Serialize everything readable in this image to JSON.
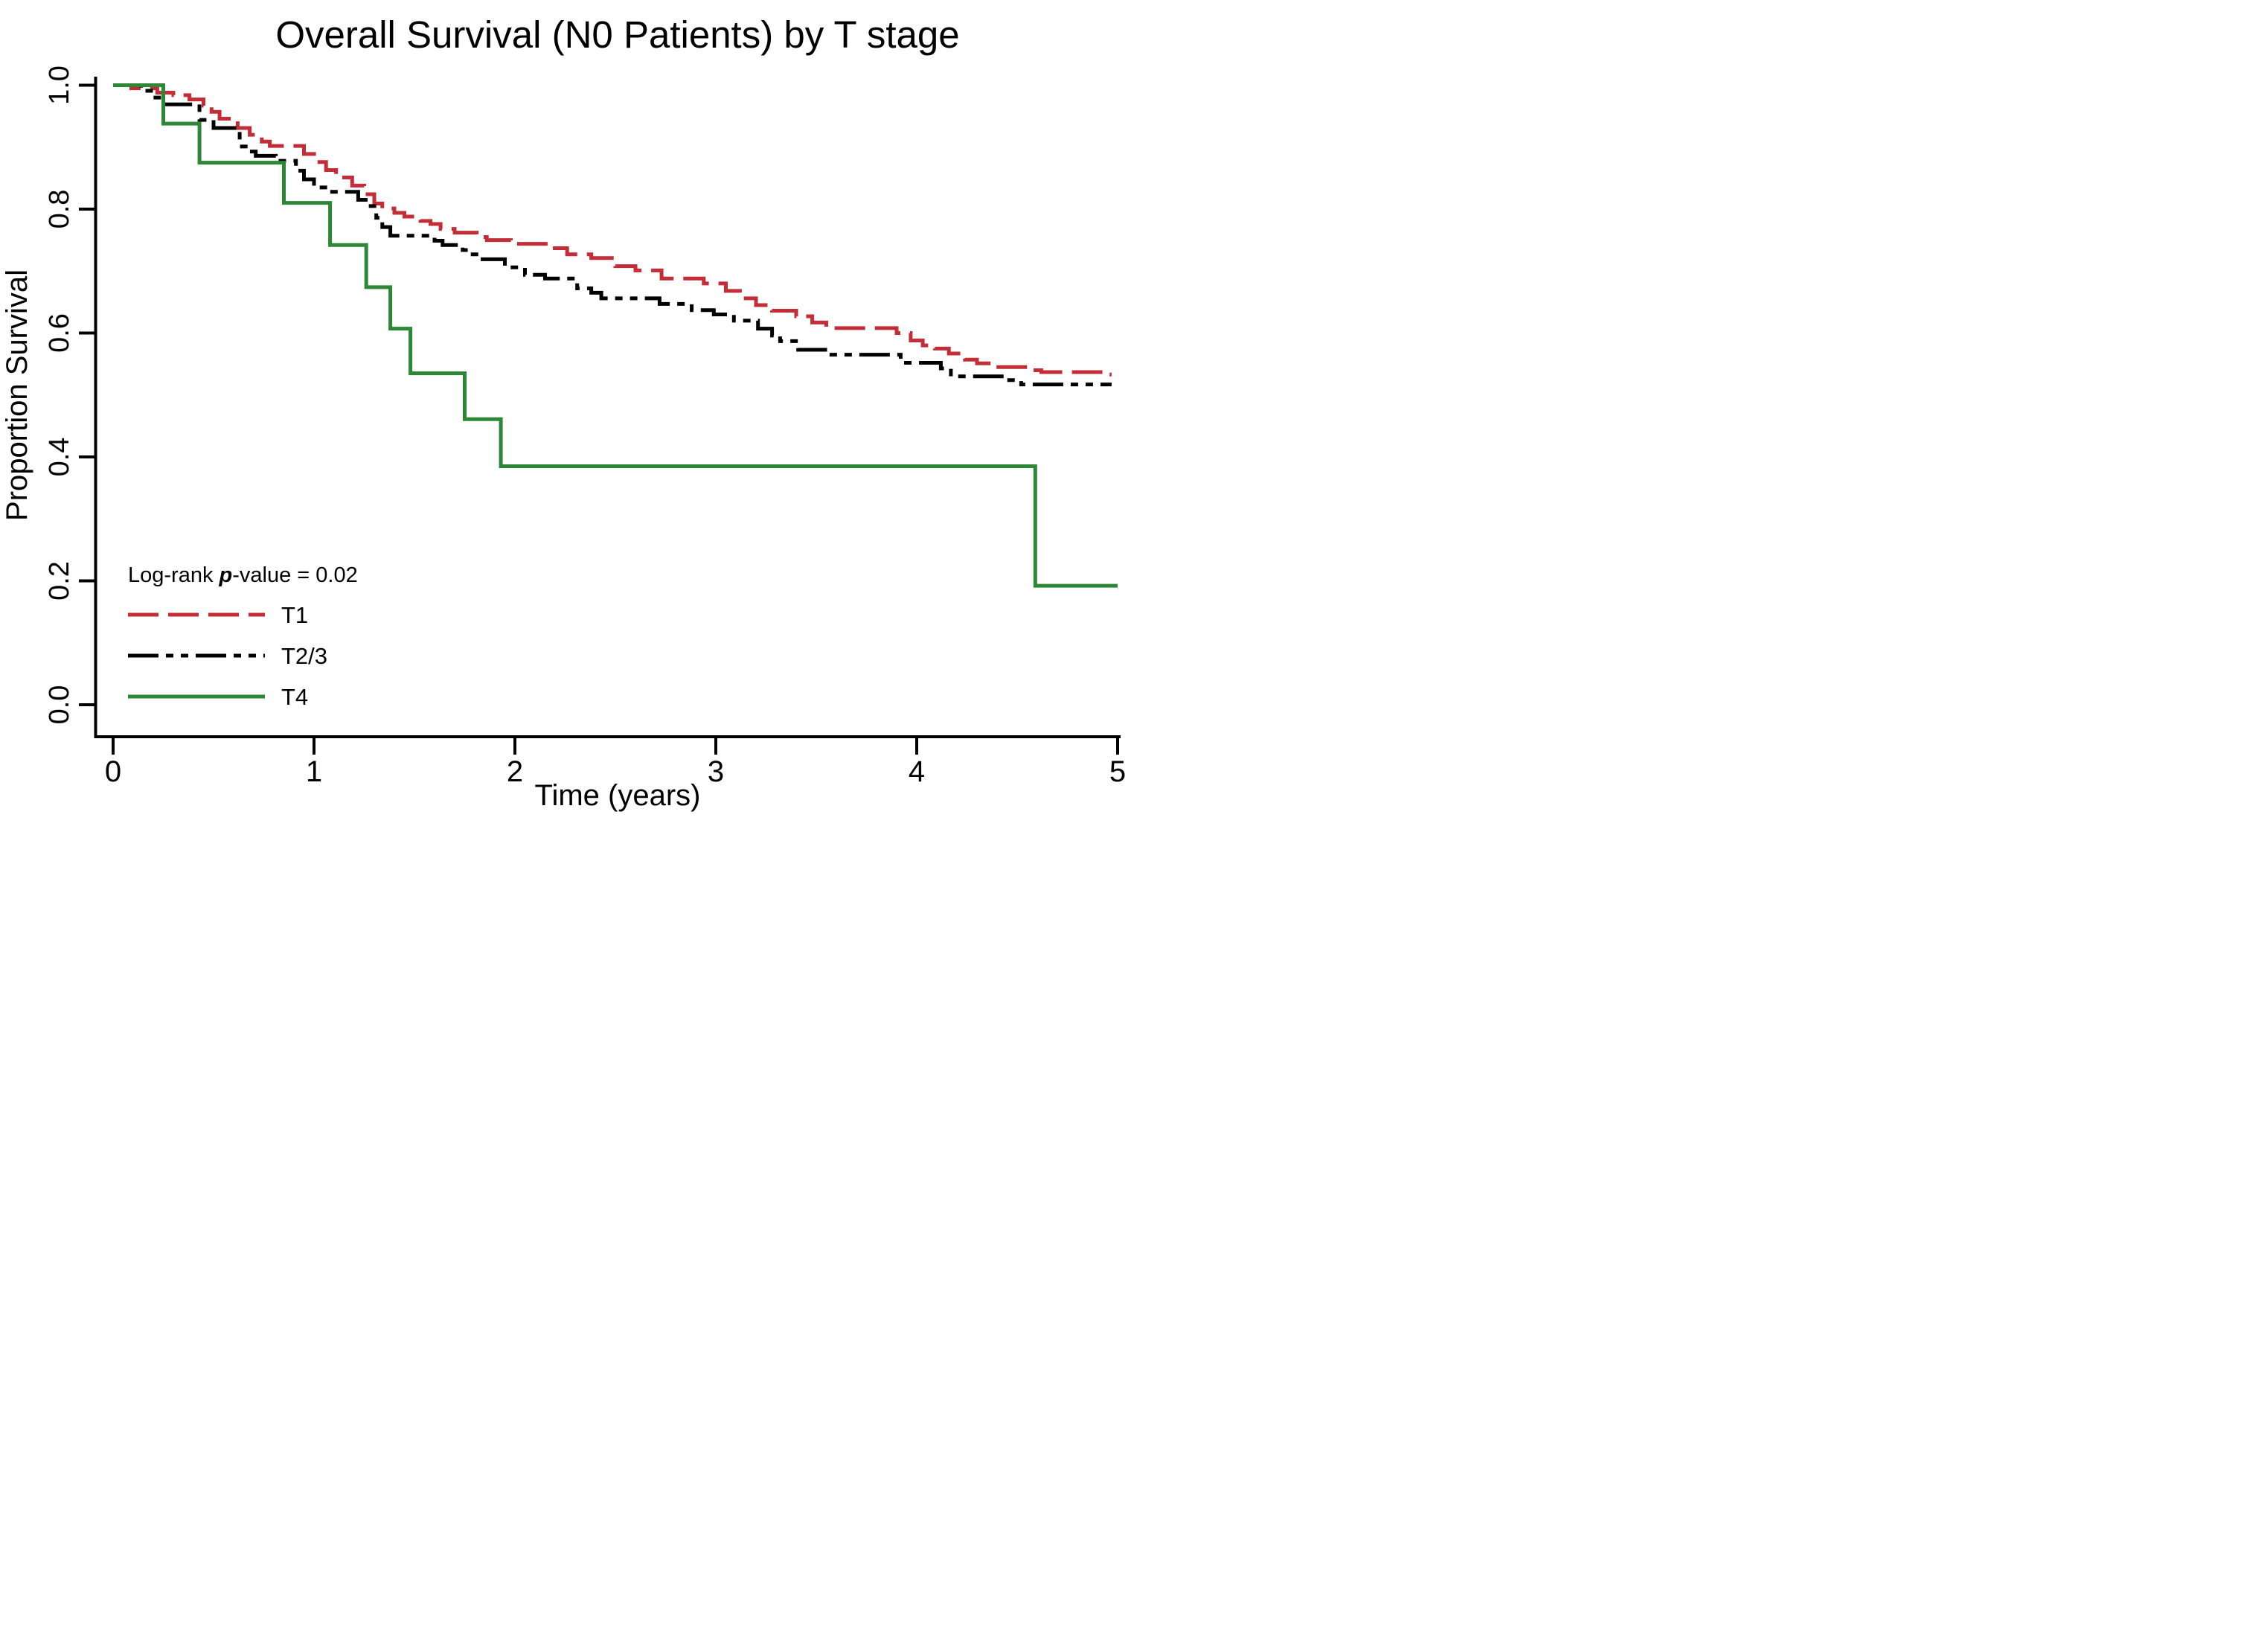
{
  "chart_data": {
    "type": "line",
    "subtype": "kaplan-meier-step",
    "title": "Overall Survival (N0 Patients) by T stage",
    "xlabel": "Time (years)",
    "ylabel": "Proportion Survival",
    "xlim": [
      0,
      5
    ],
    "ylim": [
      0.0,
      1.0
    ],
    "x_ticks": [
      "0",
      "1",
      "2",
      "3",
      "4",
      "5"
    ],
    "y_ticks": [
      "0.0",
      "0.2",
      "0.4",
      "0.6",
      "0.8",
      "1.0"
    ],
    "grid": false,
    "legend_position": "inside-bottom-left",
    "annotation": {
      "prefix": "Log-rank ",
      "italic": "p",
      "suffix": "-value = 0.02"
    },
    "series": [
      {
        "name": "T1",
        "color": "#c32d37",
        "dash": "long-dash",
        "t_end": 4.97,
        "points": [
          [
            0,
            1.0
          ],
          [
            0.09,
            0.995
          ],
          [
            0.22,
            0.988
          ],
          [
            0.3,
            0.984
          ],
          [
            0.38,
            0.977
          ],
          [
            0.45,
            0.967
          ],
          [
            0.49,
            0.957
          ],
          [
            0.53,
            0.946
          ],
          [
            0.62,
            0.931
          ],
          [
            0.68,
            0.92
          ],
          [
            0.74,
            0.909
          ],
          [
            0.78,
            0.902
          ],
          [
            0.95,
            0.889
          ],
          [
            1.01,
            0.876
          ],
          [
            1.06,
            0.863
          ],
          [
            1.11,
            0.851
          ],
          [
            1.19,
            0.838
          ],
          [
            1.25,
            0.824
          ],
          [
            1.3,
            0.809
          ],
          [
            1.34,
            0.801
          ],
          [
            1.4,
            0.794
          ],
          [
            1.45,
            0.788
          ],
          [
            1.53,
            0.781
          ],
          [
            1.58,
            0.776
          ],
          [
            1.63,
            0.768
          ],
          [
            1.7,
            0.762
          ],
          [
            1.81,
            0.755
          ],
          [
            1.86,
            0.75
          ],
          [
            1.98,
            0.744
          ],
          [
            2.17,
            0.737
          ],
          [
            2.26,
            0.727
          ],
          [
            2.38,
            0.721
          ],
          [
            2.5,
            0.708
          ],
          [
            2.6,
            0.701
          ],
          [
            2.73,
            0.688
          ],
          [
            2.94,
            0.68
          ],
          [
            3.05,
            0.668
          ],
          [
            3.12,
            0.656
          ],
          [
            3.2,
            0.645
          ],
          [
            3.28,
            0.636
          ],
          [
            3.4,
            0.627
          ],
          [
            3.48,
            0.617
          ],
          [
            3.55,
            0.608
          ],
          [
            3.9,
            0.6
          ],
          [
            3.97,
            0.588
          ],
          [
            4.03,
            0.58
          ],
          [
            4.09,
            0.575
          ],
          [
            4.16,
            0.567
          ],
          [
            4.24,
            0.557
          ],
          [
            4.3,
            0.551
          ],
          [
            4.38,
            0.545
          ],
          [
            4.54,
            0.54
          ],
          [
            4.62,
            0.537
          ],
          [
            4.93,
            0.533
          ]
        ]
      },
      {
        "name": "T2/3",
        "color": "#000000",
        "dash": "dash-dot-dot",
        "t_end": 4.97,
        "points": [
          [
            0,
            1.0
          ],
          [
            0.14,
            0.991
          ],
          [
            0.2,
            0.98
          ],
          [
            0.25,
            0.969
          ],
          [
            0.43,
            0.944
          ],
          [
            0.5,
            0.931
          ],
          [
            0.63,
            0.901
          ],
          [
            0.66,
            0.893
          ],
          [
            0.71,
            0.886
          ],
          [
            0.81,
            0.878
          ],
          [
            0.91,
            0.862
          ],
          [
            0.95,
            0.848
          ],
          [
            1.0,
            0.835
          ],
          [
            1.08,
            0.828
          ],
          [
            1.22,
            0.815
          ],
          [
            1.27,
            0.805
          ],
          [
            1.31,
            0.786
          ],
          [
            1.34,
            0.771
          ],
          [
            1.38,
            0.757
          ],
          [
            1.6,
            0.749
          ],
          [
            1.64,
            0.742
          ],
          [
            1.74,
            0.734
          ],
          [
            1.77,
            0.727
          ],
          [
            1.82,
            0.719
          ],
          [
            1.95,
            0.706
          ],
          [
            2.05,
            0.694
          ],
          [
            2.15,
            0.688
          ],
          [
            2.31,
            0.672
          ],
          [
            2.38,
            0.665
          ],
          [
            2.43,
            0.656
          ],
          [
            2.72,
            0.647
          ],
          [
            2.88,
            0.637
          ],
          [
            2.99,
            0.63
          ],
          [
            3.09,
            0.62
          ],
          [
            3.21,
            0.607
          ],
          [
            3.28,
            0.596
          ],
          [
            3.32,
            0.587
          ],
          [
            3.41,
            0.573
          ],
          [
            3.56,
            0.565
          ],
          [
            3.92,
            0.552
          ],
          [
            4.12,
            0.543
          ],
          [
            4.17,
            0.53
          ],
          [
            4.45,
            0.524
          ],
          [
            4.52,
            0.517
          ]
        ]
      },
      {
        "name": "T4",
        "color": "#2d8737",
        "dash": "solid",
        "t_end": 5.0,
        "points": [
          [
            0,
            1.0
          ],
          [
            0.25,
            0.938
          ],
          [
            0.43,
            0.875
          ],
          [
            0.85,
            0.81
          ],
          [
            1.08,
            0.742
          ],
          [
            1.26,
            0.674
          ],
          [
            1.38,
            0.607
          ],
          [
            1.48,
            0.535
          ],
          [
            1.75,
            0.461
          ],
          [
            1.93,
            0.385
          ],
          [
            4.59,
            0.192
          ]
        ]
      }
    ]
  }
}
